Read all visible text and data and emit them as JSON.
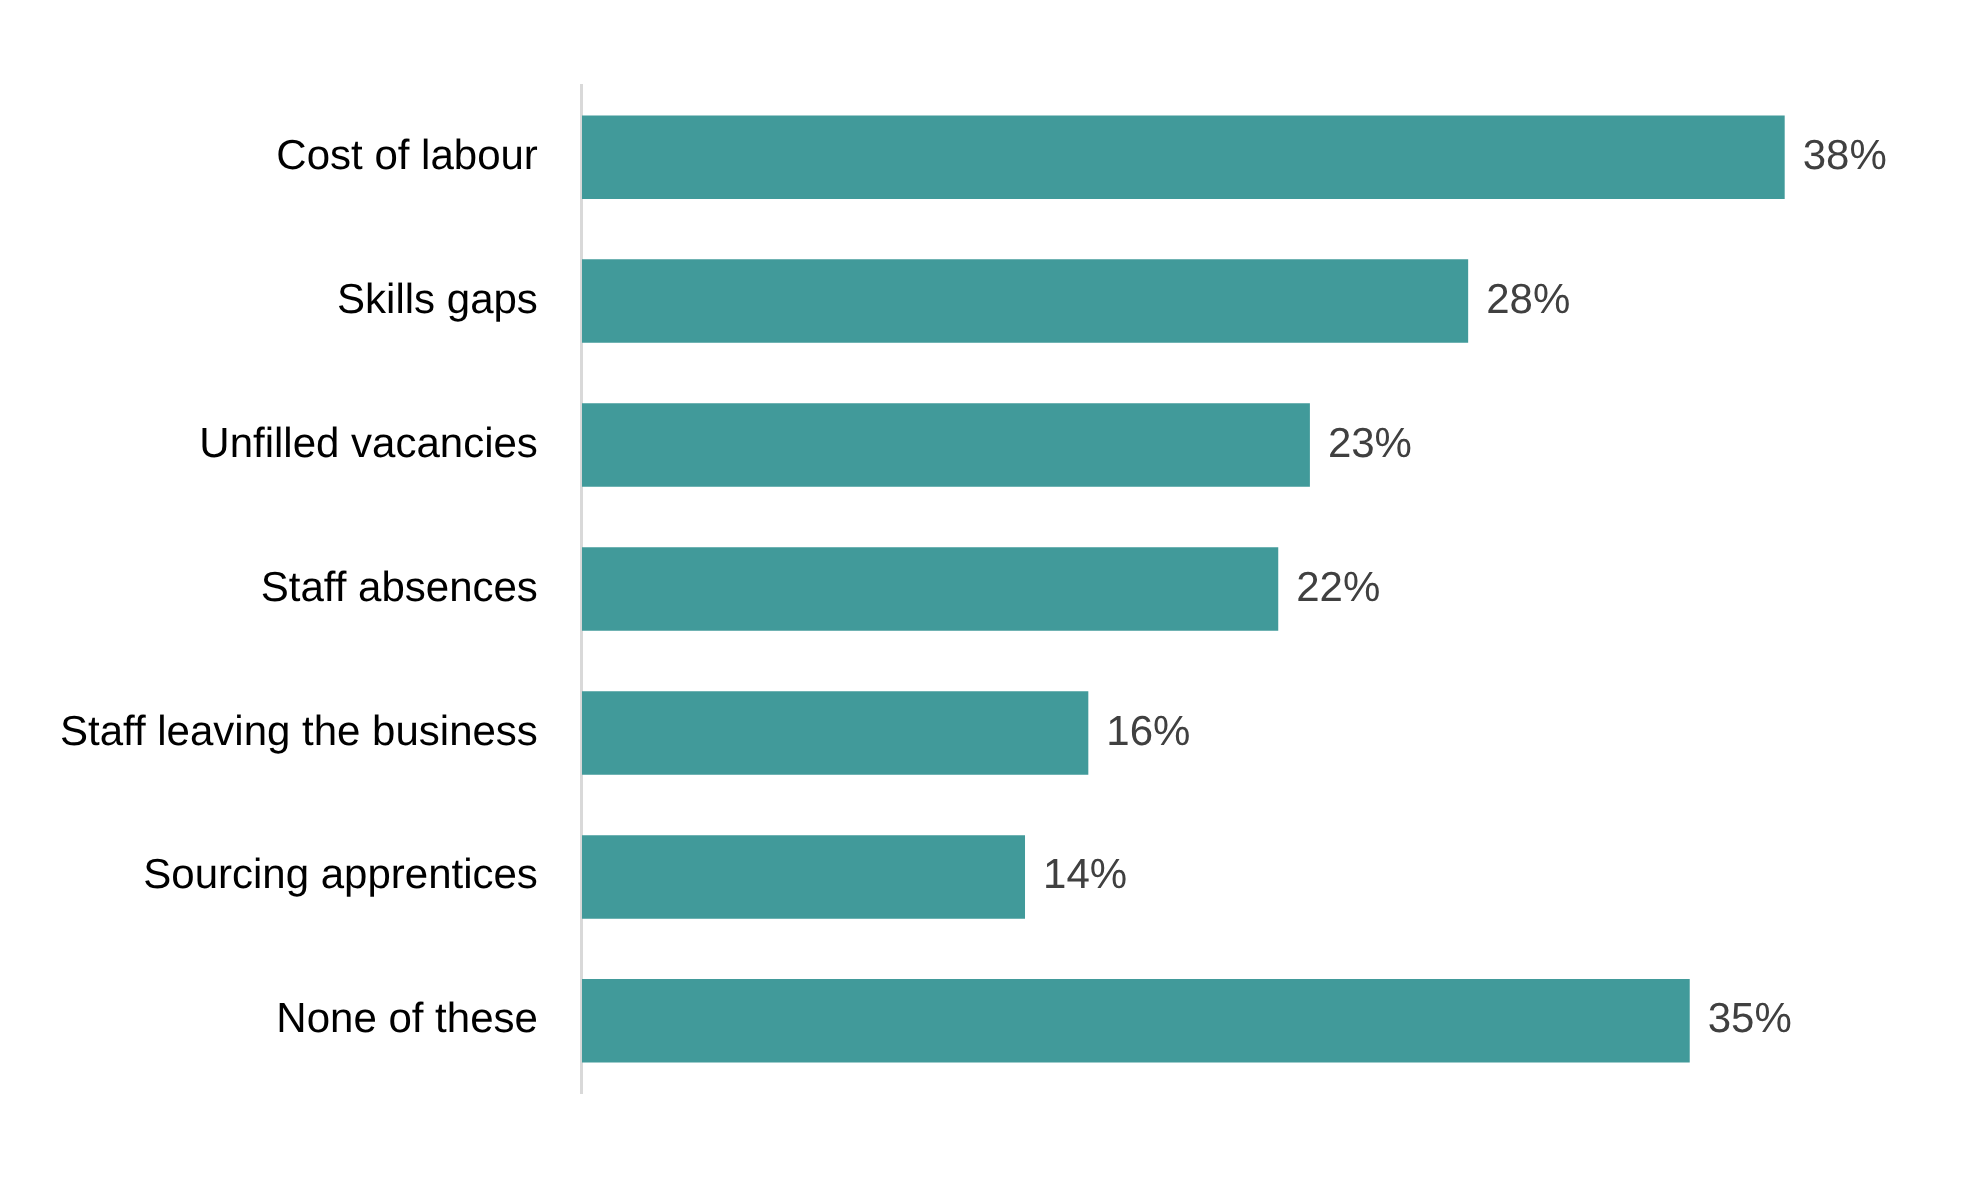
{
  "chart_data": {
    "type": "bar",
    "orientation": "horizontal",
    "categories": [
      "Cost of labour",
      "Skills gaps",
      "Unfilled vacancies",
      "Staff absences",
      "Staff leaving the business",
      "Sourcing apprentices",
      "None of these"
    ],
    "values": [
      38,
      28,
      23,
      22,
      16,
      14,
      35
    ],
    "value_labels": [
      "38%",
      "28%",
      "23%",
      "22%",
      "16%",
      "14%",
      "35%"
    ],
    "color": "#419a9a"
  }
}
